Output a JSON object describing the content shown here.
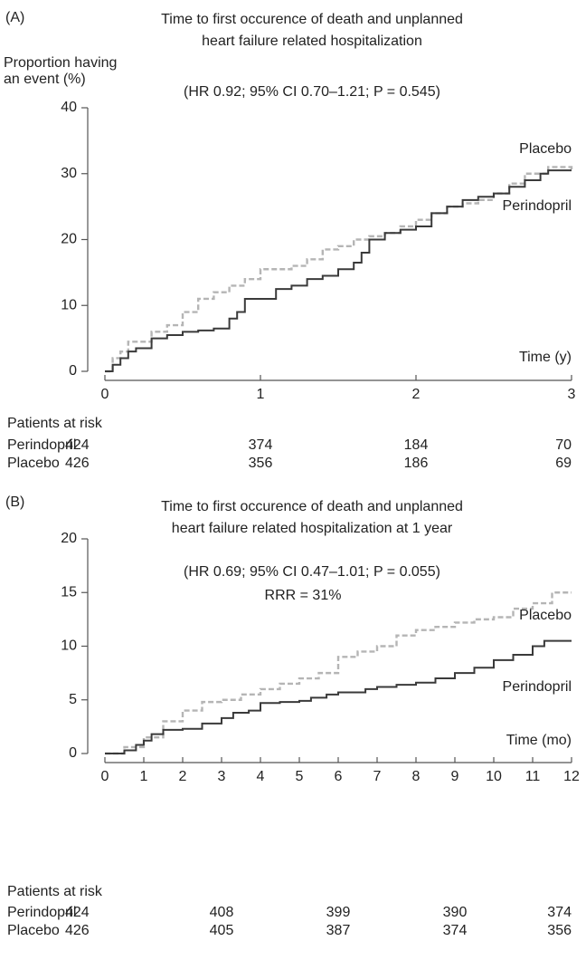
{
  "chart_data": [
    {
      "type": "line",
      "step": true,
      "panel_label": "(A)",
      "title": [
        "Time to first occurence of death and unplanned",
        "heart failure related hospitalization"
      ],
      "y_label": [
        "Proportion having",
        "an event (%)"
      ],
      "subtitle": "(HR 0.92; 95% CI 0.70–1.21; P = 0.545)",
      "x_label": "Time (y)",
      "xlim": [
        0,
        3
      ],
      "xticks": [
        0,
        1,
        2,
        3
      ],
      "ylim": [
        0,
        40
      ],
      "yticks": [
        0,
        10,
        20,
        30,
        40
      ],
      "series": [
        {
          "name": "Placebo",
          "color": "#b5b5b5",
          "dashed": true,
          "x": [
            0,
            0.05,
            0.1,
            0.15,
            0.3,
            0.4,
            0.5,
            0.6,
            0.7,
            0.8,
            0.9,
            1,
            1.2,
            1.3,
            1.4,
            1.5,
            1.6,
            1.7,
            1.8,
            1.9,
            2,
            2.1,
            2.2,
            2.3,
            2.4,
            2.5,
            2.6,
            2.7,
            2.85,
            3
          ],
          "values": [
            0,
            2,
            3,
            4.5,
            6,
            7,
            9,
            11,
            12,
            13,
            14,
            15.5,
            16,
            17,
            18.5,
            19,
            20,
            20.5,
            21,
            22,
            23,
            24,
            25,
            25.5,
            26,
            27,
            28.5,
            30,
            31,
            30.5
          ]
        },
        {
          "name": "Perindopril",
          "color": "#3a3a3a",
          "dashed": false,
          "x": [
            0,
            0.05,
            0.1,
            0.15,
            0.2,
            0.3,
            0.4,
            0.5,
            0.6,
            0.7,
            0.8,
            0.85,
            0.9,
            1.1,
            1.2,
            1.3,
            1.4,
            1.5,
            1.6,
            1.65,
            1.7,
            1.8,
            1.9,
            2,
            2.1,
            2.2,
            2.3,
            2.4,
            2.5,
            2.6,
            2.7,
            2.8,
            2.85,
            3
          ],
          "values": [
            0,
            1,
            2,
            3,
            3.5,
            5,
            5.5,
            6,
            6.2,
            6.5,
            8,
            9,
            11,
            12.5,
            13,
            14,
            14.5,
            15.5,
            16.5,
            18,
            20,
            21,
            21.5,
            22,
            24,
            25,
            26,
            26.5,
            27,
            28,
            29,
            30,
            30.5,
            30.5
          ]
        }
      ],
      "risk_table": {
        "title": "Patients at risk",
        "rows": [
          {
            "name": "Perindopril",
            "values": [
              424,
              374,
              184,
              70
            ]
          },
          {
            "name": "Placebo",
            "values": [
              426,
              356,
              186,
              69
            ]
          }
        ]
      }
    },
    {
      "type": "line",
      "step": true,
      "panel_label": "(B)",
      "title": [
        "Time to first occurence of death and unplanned",
        "heart failure related hospitalization at 1 year"
      ],
      "subtitle": "(HR 0.69; 95% CI 0.47–1.01; P = 0.055)",
      "annotation": "RRR = 31%",
      "x_label": "Time (mo)",
      "xlim": [
        0,
        12
      ],
      "xticks": [
        0,
        1,
        2,
        3,
        4,
        5,
        6,
        7,
        8,
        9,
        10,
        11,
        12
      ],
      "ylim": [
        0,
        20
      ],
      "yticks": [
        0,
        5,
        10,
        15,
        20
      ],
      "series": [
        {
          "name": "Placebo",
          "color": "#b5b5b5",
          "dashed": true,
          "x": [
            0,
            0.5,
            1,
            1.5,
            2,
            2.5,
            3,
            3.5,
            4,
            4.5,
            5,
            5.5,
            6,
            6.5,
            7,
            7.5,
            8,
            8.5,
            9,
            9.5,
            10,
            10.5,
            11,
            11.5,
            12
          ],
          "values": [
            0,
            0.6,
            1.5,
            3,
            4,
            4.8,
            5,
            5.5,
            6,
            6.5,
            7,
            7.5,
            9,
            9.5,
            10,
            11,
            11.5,
            11.8,
            12.2,
            12.5,
            12.7,
            13.5,
            14,
            15,
            15
          ]
        },
        {
          "name": "Perindopril",
          "color": "#3a3a3a",
          "dashed": false,
          "x": [
            0,
            0.5,
            0.8,
            1,
            1.2,
            1.5,
            2,
            2.5,
            3,
            3.3,
            3.7,
            4,
            4.5,
            5,
            5.3,
            5.7,
            6,
            6.7,
            7,
            7.5,
            8,
            8.5,
            9,
            9.5,
            10,
            10.5,
            11,
            11.3,
            12
          ],
          "values": [
            0,
            0.3,
            0.8,
            1.2,
            1.8,
            2.2,
            2.3,
            2.8,
            3.3,
            3.8,
            4,
            4.7,
            4.8,
            4.9,
            5.2,
            5.5,
            5.7,
            6,
            6.2,
            6.4,
            6.6,
            7,
            7.5,
            8,
            8.7,
            9.2,
            10,
            10.5,
            10.5
          ]
        }
      ],
      "risk_table": {
        "title": "Patients at risk",
        "rows": [
          {
            "name": "Perindopril",
            "values": [
              424,
              408,
              399,
              390,
              374
            ]
          },
          {
            "name": "Placebo",
            "values": [
              426,
              405,
              387,
              374,
              356
            ]
          }
        ]
      }
    }
  ]
}
